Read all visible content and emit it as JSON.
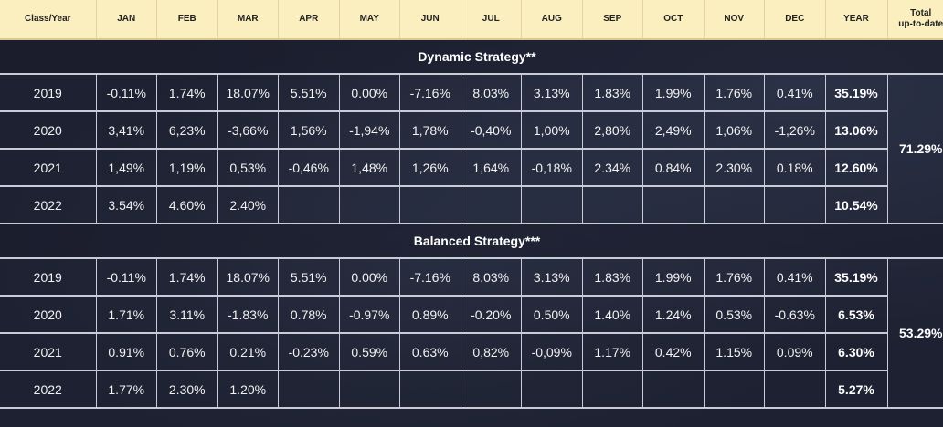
{
  "header": {
    "class_year": "Class/Year",
    "months": [
      "JAN",
      "FEB",
      "MAR",
      "APR",
      "MAY",
      "JUN",
      "JUL",
      "AUG",
      "SEP",
      "OCT",
      "NOV",
      "DEC"
    ],
    "year": "YEAR",
    "total_line1": "Total",
    "total_line2": "up-to-date"
  },
  "sections": [
    {
      "title": "Dynamic Strategy**",
      "total": "71.29%",
      "rows": [
        {
          "year": "2019",
          "values": [
            "-0.11%",
            "1.74%",
            "18.07%",
            "5.51%",
            "0.00%",
            "-7.16%",
            "8.03%",
            "3.13%",
            "1.83%",
            "1.99%",
            "1.76%",
            "0.41%"
          ],
          "ytd": "35.19%"
        },
        {
          "year": "2020",
          "values": [
            "3,41%",
            "6,23%",
            "-3,66%",
            "1,56%",
            "-1,94%",
            "1,78%",
            "-0,40%",
            "1,00%",
            "2,80%",
            "2,49%",
            "1,06%",
            "-1,26%"
          ],
          "ytd": "13.06%"
        },
        {
          "year": "2021",
          "values": [
            "1,49%",
            "1,19%",
            "0,53%",
            "-0,46%",
            "1,48%",
            "1,26%",
            "1,64%",
            "-0,18%",
            "2.34%",
            "0.84%",
            "2.30%",
            "0.18%"
          ],
          "ytd": "12.60%"
        },
        {
          "year": "2022",
          "values": [
            "3.54%",
            "4.60%",
            "2.40%",
            "",
            "",
            "",
            "",
            "",
            "",
            "",
            "",
            ""
          ],
          "ytd": "10.54%"
        }
      ]
    },
    {
      "title": "Balanced Strategy***",
      "total": "53.29%",
      "rows": [
        {
          "year": "2019",
          "values": [
            "-0.11%",
            "1.74%",
            "18.07%",
            "5.51%",
            "0.00%",
            "-7.16%",
            "8.03%",
            "3.13%",
            "1.83%",
            "1.99%",
            "1.76%",
            "0.41%"
          ],
          "ytd": "35.19%"
        },
        {
          "year": "2020",
          "values": [
            "1.71%",
            "3.11%",
            "-1.83%",
            "0.78%",
            "-0.97%",
            "0.89%",
            "-0.20%",
            "0.50%",
            "1.40%",
            "1.24%",
            "0.53%",
            "-0.63%"
          ],
          "ytd": "6.53%"
        },
        {
          "year": "2021",
          "values": [
            "0.91%",
            "0.76%",
            "0.21%",
            "-0.23%",
            "0.59%",
            "0.63%",
            "0,82%",
            "-0,09%",
            "1.17%",
            "0.42%",
            "1.15%",
            "0.09%"
          ],
          "ytd": "6.30%"
        },
        {
          "year": "2022",
          "values": [
            "1.77%",
            "2.30%",
            "1.20%",
            "",
            "",
            "",
            "",
            "",
            "",
            "",
            "",
            ""
          ],
          "ytd": "5.27%"
        }
      ]
    }
  ]
}
